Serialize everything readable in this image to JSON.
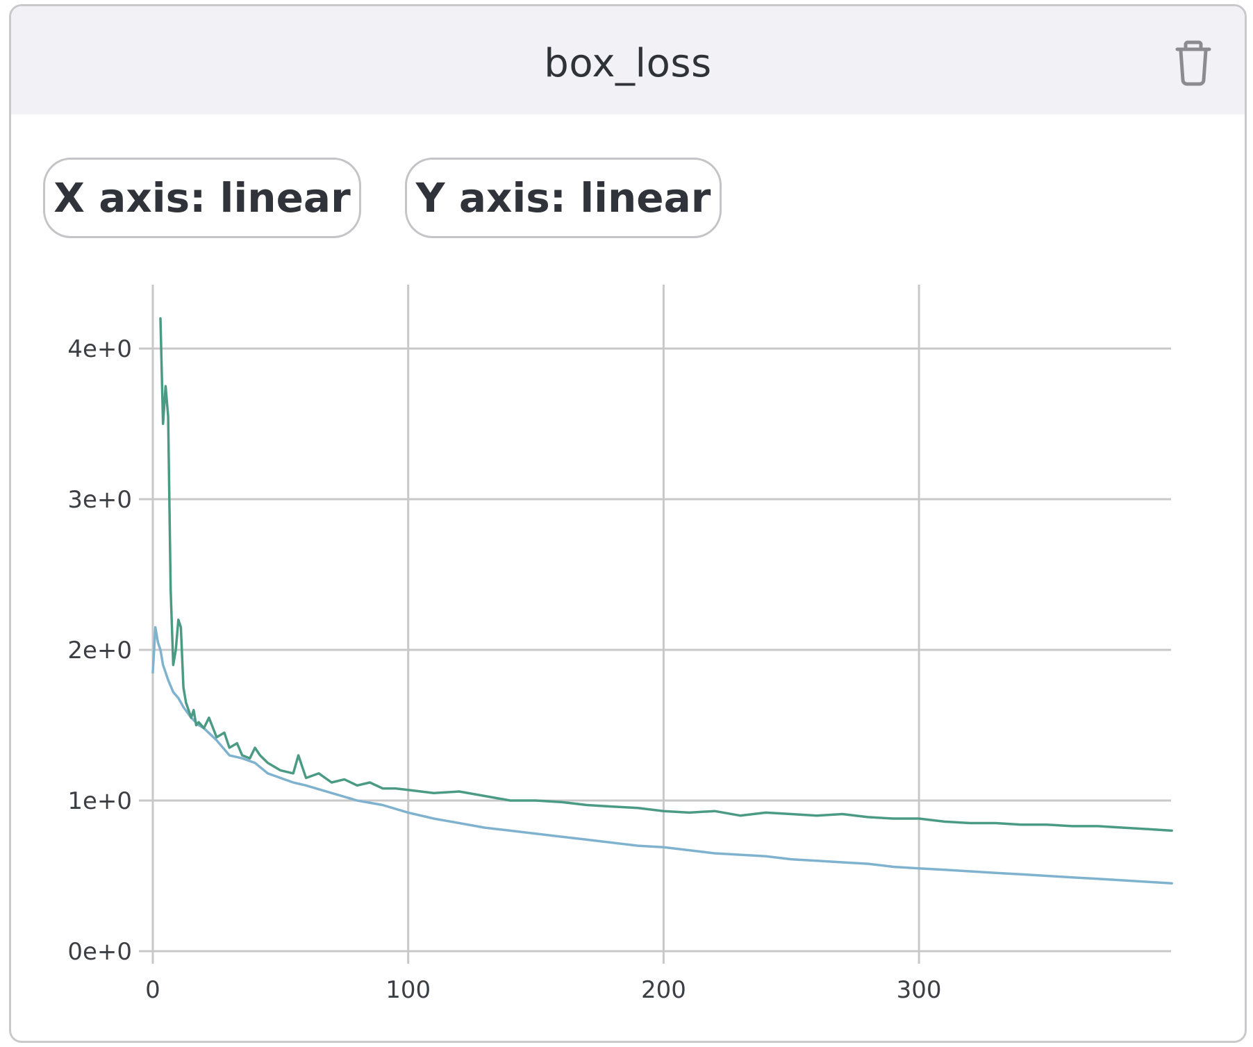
{
  "card": {
    "title": "box_loss",
    "delete_icon": "trash-icon",
    "x_axis_button": "X axis: linear",
    "y_axis_button": "Y axis: linear"
  },
  "colors": {
    "series_1": "#4b9a84",
    "series_2": "#7fb2cf",
    "grid": "#c8c8c8",
    "header_bg": "#f2f2f6"
  },
  "chart_data": {
    "type": "line",
    "title": "box_loss",
    "xlabel": "",
    "ylabel": "",
    "xlim": [
      0,
      400
    ],
    "ylim": [
      0,
      4.4
    ],
    "x_scale": "linear",
    "y_scale": "linear",
    "grid": true,
    "x_ticks": [
      0,
      100,
      200,
      300
    ],
    "x_tick_labels": [
      "0",
      "100",
      "200",
      "300"
    ],
    "y_ticks": [
      0,
      1,
      2,
      3,
      4
    ],
    "y_tick_labels": [
      "0e+0",
      "1e+0",
      "2e+0",
      "3e+0",
      "4e+0"
    ],
    "series": [
      {
        "color": "#4b9a84",
        "x": [
          3,
          4,
          5,
          6,
          7,
          8,
          9,
          10,
          11,
          12,
          13,
          14,
          15,
          16,
          17,
          18,
          20,
          22,
          25,
          28,
          30,
          33,
          35,
          38,
          40,
          42,
          45,
          48,
          50,
          55,
          57,
          60,
          65,
          70,
          75,
          80,
          85,
          90,
          95,
          100,
          110,
          120,
          130,
          140,
          150,
          160,
          170,
          180,
          190,
          200,
          210,
          220,
          230,
          240,
          250,
          260,
          270,
          280,
          290,
          300,
          310,
          320,
          330,
          340,
          350,
          360,
          370,
          380,
          390,
          399
        ],
        "y": [
          4.2,
          3.5,
          3.75,
          3.55,
          2.4,
          1.9,
          2.0,
          2.2,
          2.15,
          1.75,
          1.65,
          1.6,
          1.55,
          1.6,
          1.5,
          1.52,
          1.48,
          1.55,
          1.42,
          1.45,
          1.35,
          1.38,
          1.3,
          1.28,
          1.35,
          1.3,
          1.25,
          1.22,
          1.2,
          1.18,
          1.3,
          1.15,
          1.18,
          1.12,
          1.14,
          1.1,
          1.12,
          1.08,
          1.08,
          1.07,
          1.05,
          1.06,
          1.03,
          1.0,
          1.0,
          0.99,
          0.97,
          0.96,
          0.95,
          0.93,
          0.92,
          0.93,
          0.9,
          0.92,
          0.91,
          0.9,
          0.91,
          0.89,
          0.88,
          0.88,
          0.86,
          0.85,
          0.85,
          0.84,
          0.84,
          0.83,
          0.83,
          0.82,
          0.81,
          0.8
        ]
      },
      {
        "color": "#7fb2cf",
        "x": [
          0,
          1,
          2,
          3,
          4,
          5,
          6,
          8,
          10,
          12,
          15,
          18,
          20,
          25,
          30,
          35,
          40,
          45,
          50,
          55,
          60,
          70,
          80,
          90,
          100,
          110,
          120,
          130,
          140,
          150,
          160,
          170,
          180,
          190,
          200,
          210,
          220,
          230,
          240,
          250,
          260,
          270,
          280,
          290,
          300,
          310,
          320,
          330,
          340,
          350,
          360,
          370,
          380,
          390,
          399
        ],
        "y": [
          1.85,
          2.15,
          2.05,
          2.0,
          1.9,
          1.85,
          1.8,
          1.72,
          1.68,
          1.62,
          1.55,
          1.5,
          1.48,
          1.4,
          1.3,
          1.28,
          1.25,
          1.18,
          1.15,
          1.12,
          1.1,
          1.05,
          1.0,
          0.97,
          0.92,
          0.88,
          0.85,
          0.82,
          0.8,
          0.78,
          0.76,
          0.74,
          0.72,
          0.7,
          0.69,
          0.67,
          0.65,
          0.64,
          0.63,
          0.61,
          0.6,
          0.59,
          0.58,
          0.56,
          0.55,
          0.54,
          0.53,
          0.52,
          0.51,
          0.5,
          0.49,
          0.48,
          0.47,
          0.46,
          0.45
        ]
      }
    ]
  }
}
